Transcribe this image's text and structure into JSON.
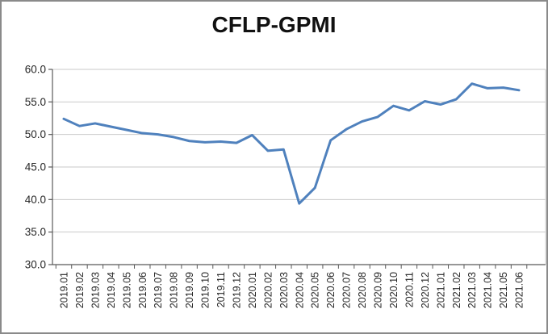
{
  "window": {
    "title": "CFLP-GPMI"
  },
  "chart_data": {
    "type": "line",
    "title": "CFLP-GPMI",
    "categories": [
      "2019.01",
      "2019.02",
      "2019.03",
      "2019.04",
      "2019.05",
      "2019.06",
      "2019.07",
      "2019.08",
      "2019.09",
      "2019.10",
      "2019.11",
      "2019.12",
      "2020.01",
      "2020.02",
      "2020.03",
      "2020.04",
      "2020.05",
      "2020.06",
      "2020.07",
      "2020.08",
      "2020.09",
      "2020.10",
      "2020.11",
      "2020.12",
      "2021.01",
      "2021.02",
      "2021.03",
      "2021.04",
      "2021.05",
      "2021.06"
    ],
    "series": [
      {
        "name": "CFLP-GPMI",
        "color": "#4F81BD",
        "values": [
          52.4,
          51.3,
          51.7,
          51.2,
          50.7,
          50.2,
          50.0,
          49.6,
          49.0,
          48.8,
          48.9,
          48.7,
          49.9,
          47.5,
          47.7,
          39.4,
          41.8,
          49.1,
          50.8,
          52.0,
          52.7,
          54.4,
          53.7,
          55.1,
          54.6,
          55.4,
          57.8,
          57.1,
          57.2,
          56.8
        ]
      }
    ],
    "xlabel": "",
    "ylabel": "",
    "ylim": [
      30,
      60
    ],
    "yticks": [
      60,
      55,
      50,
      45,
      40,
      35,
      30
    ],
    "ytick_labels": [
      "60.0",
      "55.0",
      "50.0",
      "45.0",
      "40.0",
      "35.0",
      "30.0"
    ],
    "grid": true,
    "legend_position": "none",
    "x_tick_label_rotation": 90
  },
  "colors": {
    "line": "#4F81BD",
    "gridline": "#C9C9C9",
    "plot_right_border": "#C9C9C9",
    "axis": "#595959",
    "label_text": "#262626",
    "title_text": "#111111",
    "background": "#FFFFFF",
    "frame_border": "#8A8A8A"
  }
}
